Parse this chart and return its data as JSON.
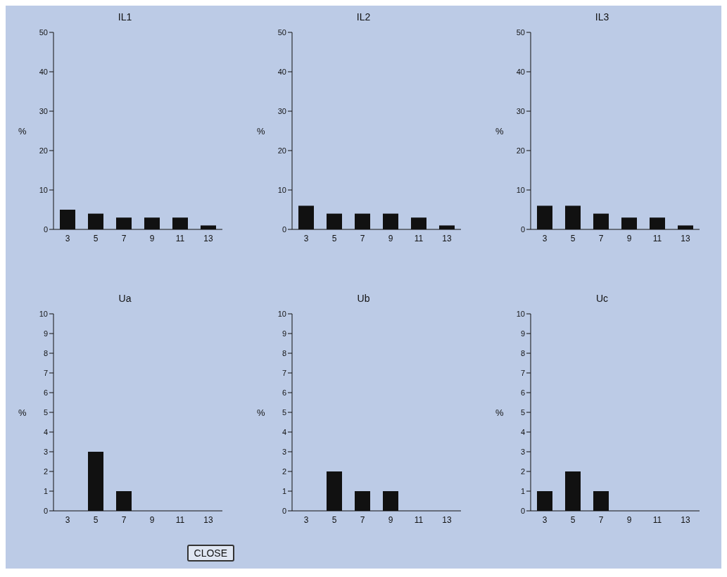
{
  "chart_data": [
    {
      "type": "bar",
      "title": "IL1",
      "ylabel": "%",
      "categories": [
        "3",
        "5",
        "7",
        "9",
        "11",
        "13"
      ],
      "values": [
        5,
        4,
        3,
        3,
        3,
        1
      ],
      "color": "#111111",
      "ylim": [
        0,
        50
      ],
      "yticks": [
        0,
        10,
        20,
        30,
        40,
        50
      ]
    },
    {
      "type": "bar",
      "title": "IL2",
      "ylabel": "%",
      "categories": [
        "3",
        "5",
        "7",
        "9",
        "11",
        "13"
      ],
      "values": [
        6,
        4,
        4,
        4,
        3,
        1
      ],
      "color": "#111111",
      "ylim": [
        0,
        50
      ],
      "yticks": [
        0,
        10,
        20,
        30,
        40,
        50
      ]
    },
    {
      "type": "bar",
      "title": "IL3",
      "ylabel": "%",
      "categories": [
        "3",
        "5",
        "7",
        "9",
        "11",
        "13"
      ],
      "values": [
        6,
        6,
        4,
        3,
        3,
        1
      ],
      "color": "#111111",
      "ylim": [
        0,
        50
      ],
      "yticks": [
        0,
        10,
        20,
        30,
        40,
        50
      ]
    },
    {
      "type": "bar",
      "title": "Ua",
      "ylabel": "%",
      "categories": [
        "3",
        "5",
        "7",
        "9",
        "11",
        "13"
      ],
      "values": [
        0,
        3,
        1,
        0,
        0,
        0
      ],
      "color": "#111111",
      "ylim": [
        0,
        10
      ],
      "yticks": [
        0,
        1,
        2,
        3,
        4,
        5,
        6,
        7,
        8,
        9,
        10
      ],
      "annotations": [
        "CLOSE"
      ]
    },
    {
      "type": "bar",
      "title": "Ub",
      "ylabel": "%",
      "categories": [
        "3",
        "5",
        "7",
        "9",
        "11",
        "13"
      ],
      "values": [
        0,
        2,
        1,
        1,
        0,
        0
      ],
      "color": "#111111",
      "ylim": [
        0,
        10
      ],
      "yticks": [
        0,
        1,
        2,
        3,
        4,
        5,
        6,
        7,
        8,
        9,
        10
      ]
    },
    {
      "type": "bar",
      "title": "Uc",
      "ylabel": "%",
      "categories": [
        "3",
        "5",
        "7",
        "9",
        "11",
        "13"
      ],
      "values": [
        1,
        2,
        1,
        0,
        0,
        0
      ],
      "color": "#111111",
      "ylim": [
        0,
        10
      ],
      "yticks": [
        0,
        1,
        2,
        3,
        4,
        5,
        6,
        7,
        8,
        9,
        10
      ]
    }
  ]
}
